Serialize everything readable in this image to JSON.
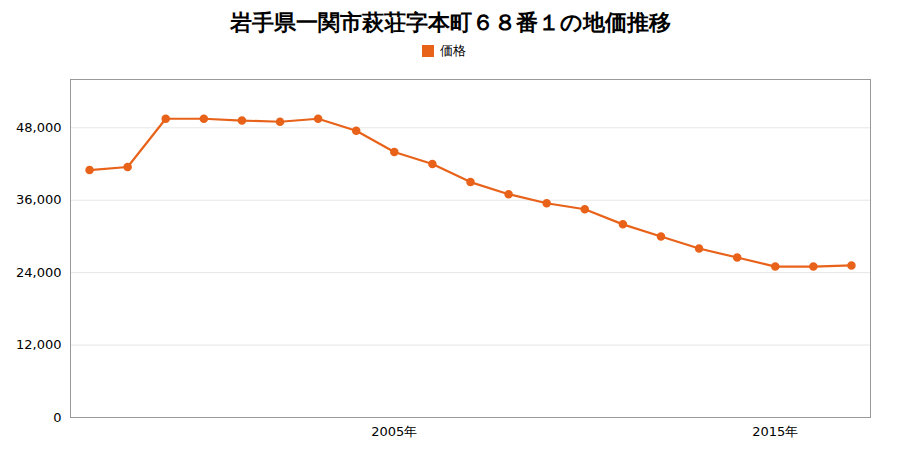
{
  "chart_data": {
    "type": "line",
    "title": "岩手県一関市萩荘字本町６８番１の地価推移",
    "x": [
      1997,
      1998,
      1999,
      2000,
      2001,
      2002,
      2003,
      2004,
      2005,
      2006,
      2007,
      2008,
      2009,
      2010,
      2011,
      2012,
      2013,
      2014,
      2015,
      2016,
      2017
    ],
    "series": [
      {
        "name": "価格",
        "color": "#e8621a",
        "marker": "circle",
        "line_style": "solid",
        "values": [
          41000,
          41500,
          49500,
          49500,
          49200,
          49000,
          49500,
          47500,
          44000,
          42000,
          39000,
          37000,
          35500,
          34500,
          32000,
          30000,
          28000,
          26500,
          25000,
          25000,
          25200
        ]
      }
    ],
    "xlim": [
      1996.5,
      2017.5
    ],
    "xticks": [
      {
        "value": 2005,
        "label": "2005年"
      },
      {
        "value": 2015,
        "label": "2015年"
      }
    ],
    "ylim": [
      0,
      56000
    ],
    "yticks": [
      0,
      {
        "value": 12000,
        "label": "12,000"
      },
      {
        "value": 24000,
        "label": "24,000"
      },
      {
        "value": 36000,
        "label": "36,000"
      },
      {
        "value": 48000,
        "label": "48,000"
      }
    ],
    "grid": true,
    "legend": "top"
  }
}
